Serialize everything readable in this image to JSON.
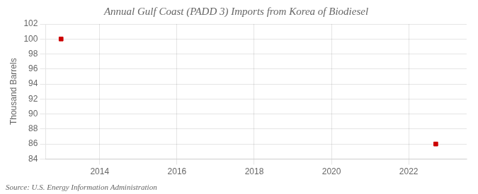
{
  "chart_data": {
    "type": "scatter",
    "title": "Annual Gulf Coast (PADD 3) Imports from Korea of Biodiesel",
    "ylabel": "Thousand Barrels",
    "annotation": "Source: U.S. Energy Information Administration",
    "x": [
      2013,
      2022.7
    ],
    "values": [
      100,
      86
    ],
    "color": "#cc0000",
    "marker": "square",
    "xlim": [
      2012.6,
      2023.5
    ],
    "xticks": [
      2014,
      2016,
      2018,
      2020,
      2022
    ],
    "ylim": [
      84,
      102
    ],
    "yticks": [
      84,
      86,
      88,
      90,
      92,
      94,
      96,
      98,
      100,
      102
    ],
    "grid": true
  }
}
